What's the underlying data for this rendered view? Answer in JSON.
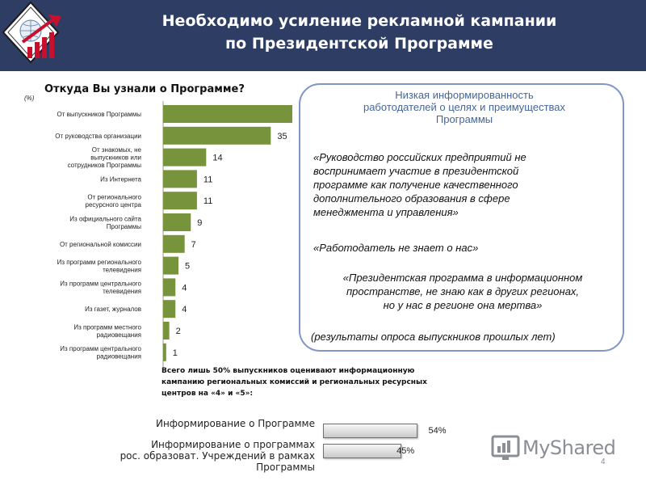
{
  "header": {
    "title_line1": "Необходимо усиление рекламной кампании",
    "title_line2": "по Президентской Программе"
  },
  "chart_data": {
    "type": "bar",
    "orientation": "horizontal",
    "title": "Откуда Вы узнали о Программе?",
    "unit": "(%)",
    "categories": [
      "От выпускников Программы",
      "От руководства организации",
      "От знакомых, не выпускников или сотрудников Программы",
      "Из Интернета",
      "От регионального ресурсного центра",
      "Из официального сайта Программы",
      "От региональной комиссии",
      "Из программ регионального телевидения",
      "Из программ центрального телевидения",
      "Из газет, журналов",
      "Из программ местного радиовещания",
      "Из программ центрального радиовещания"
    ],
    "category_lines": [
      [
        "От выпускников Программы"
      ],
      [
        "От руководства организации"
      ],
      [
        "От знакомых, не",
        "выпускников или",
        "сотрудников Программы"
      ],
      [
        "Из Интернета"
      ],
      [
        "От регионального",
        "ресурсного центра"
      ],
      [
        "Из официального сайта",
        "Программы"
      ],
      [
        "От региональной комиссии"
      ],
      [
        "Из программ регионального",
        "телевидения"
      ],
      [
        "Из программ центрального",
        "телевидения"
      ],
      [
        "Из газет, журналов"
      ],
      [
        "Из программ местного",
        "радиовещания"
      ],
      [
        "Из программ центрального",
        "радиовещания"
      ]
    ],
    "values": [
      null,
      35,
      14,
      11,
      11,
      9,
      7,
      5,
      4,
      4,
      2,
      1
    ],
    "value_labels": [
      "",
      "35",
      "14",
      "11",
      "11",
      "9",
      "7",
      "5",
      "4",
      "4",
      "2",
      "1"
    ],
    "first_bar_estimate": 42,
    "xlim": [
      0,
      42
    ],
    "bar_color": "#77933c",
    "grid": false,
    "legend": "none"
  },
  "quote_box": {
    "head_line1": "Низкая информированность",
    "head_line2": "работодателей о целях и преимуществах",
    "head_line3": "Программы",
    "quote1_lines": [
      "«Руководство российских предприятий не",
      "воспринимает участие в президентской",
      "программе как получение качественного",
      "дополнительного образования в сфере",
      "менеджмента и управления»"
    ],
    "quote2": "«Работодатель не знает о нас»",
    "quote3_lines": [
      "«Президентская программа в информационном",
      "пространстве, не знаю как в других регионах,",
      "но у нас в регионе она мертва»"
    ],
    "source": "(результаты опроса выпускников прошлых лет)"
  },
  "note_lines": [
    "Всего лишь 50% выпускников оценивают информационную",
    "кампанию региональных комиссий и региональных ресурсных",
    "центров на «4» и «5»:"
  ],
  "stats": [
    {
      "label_lines": [
        "Информирование о Программе"
      ],
      "value": 54,
      "value_label": "54%"
    },
    {
      "label_lines": [
        "Информирование о программах",
        "рос. образоват. Учреждений в рамках",
        "Программы"
      ],
      "value": 45,
      "value_label": "45%"
    }
  ],
  "watermark": {
    "text": "MyShared"
  },
  "page_number": "4",
  "colors": {
    "header_bg": "#2d3d63",
    "box_border": "#7f97c4",
    "box_head": "#45669a",
    "bar": "#77933c"
  }
}
